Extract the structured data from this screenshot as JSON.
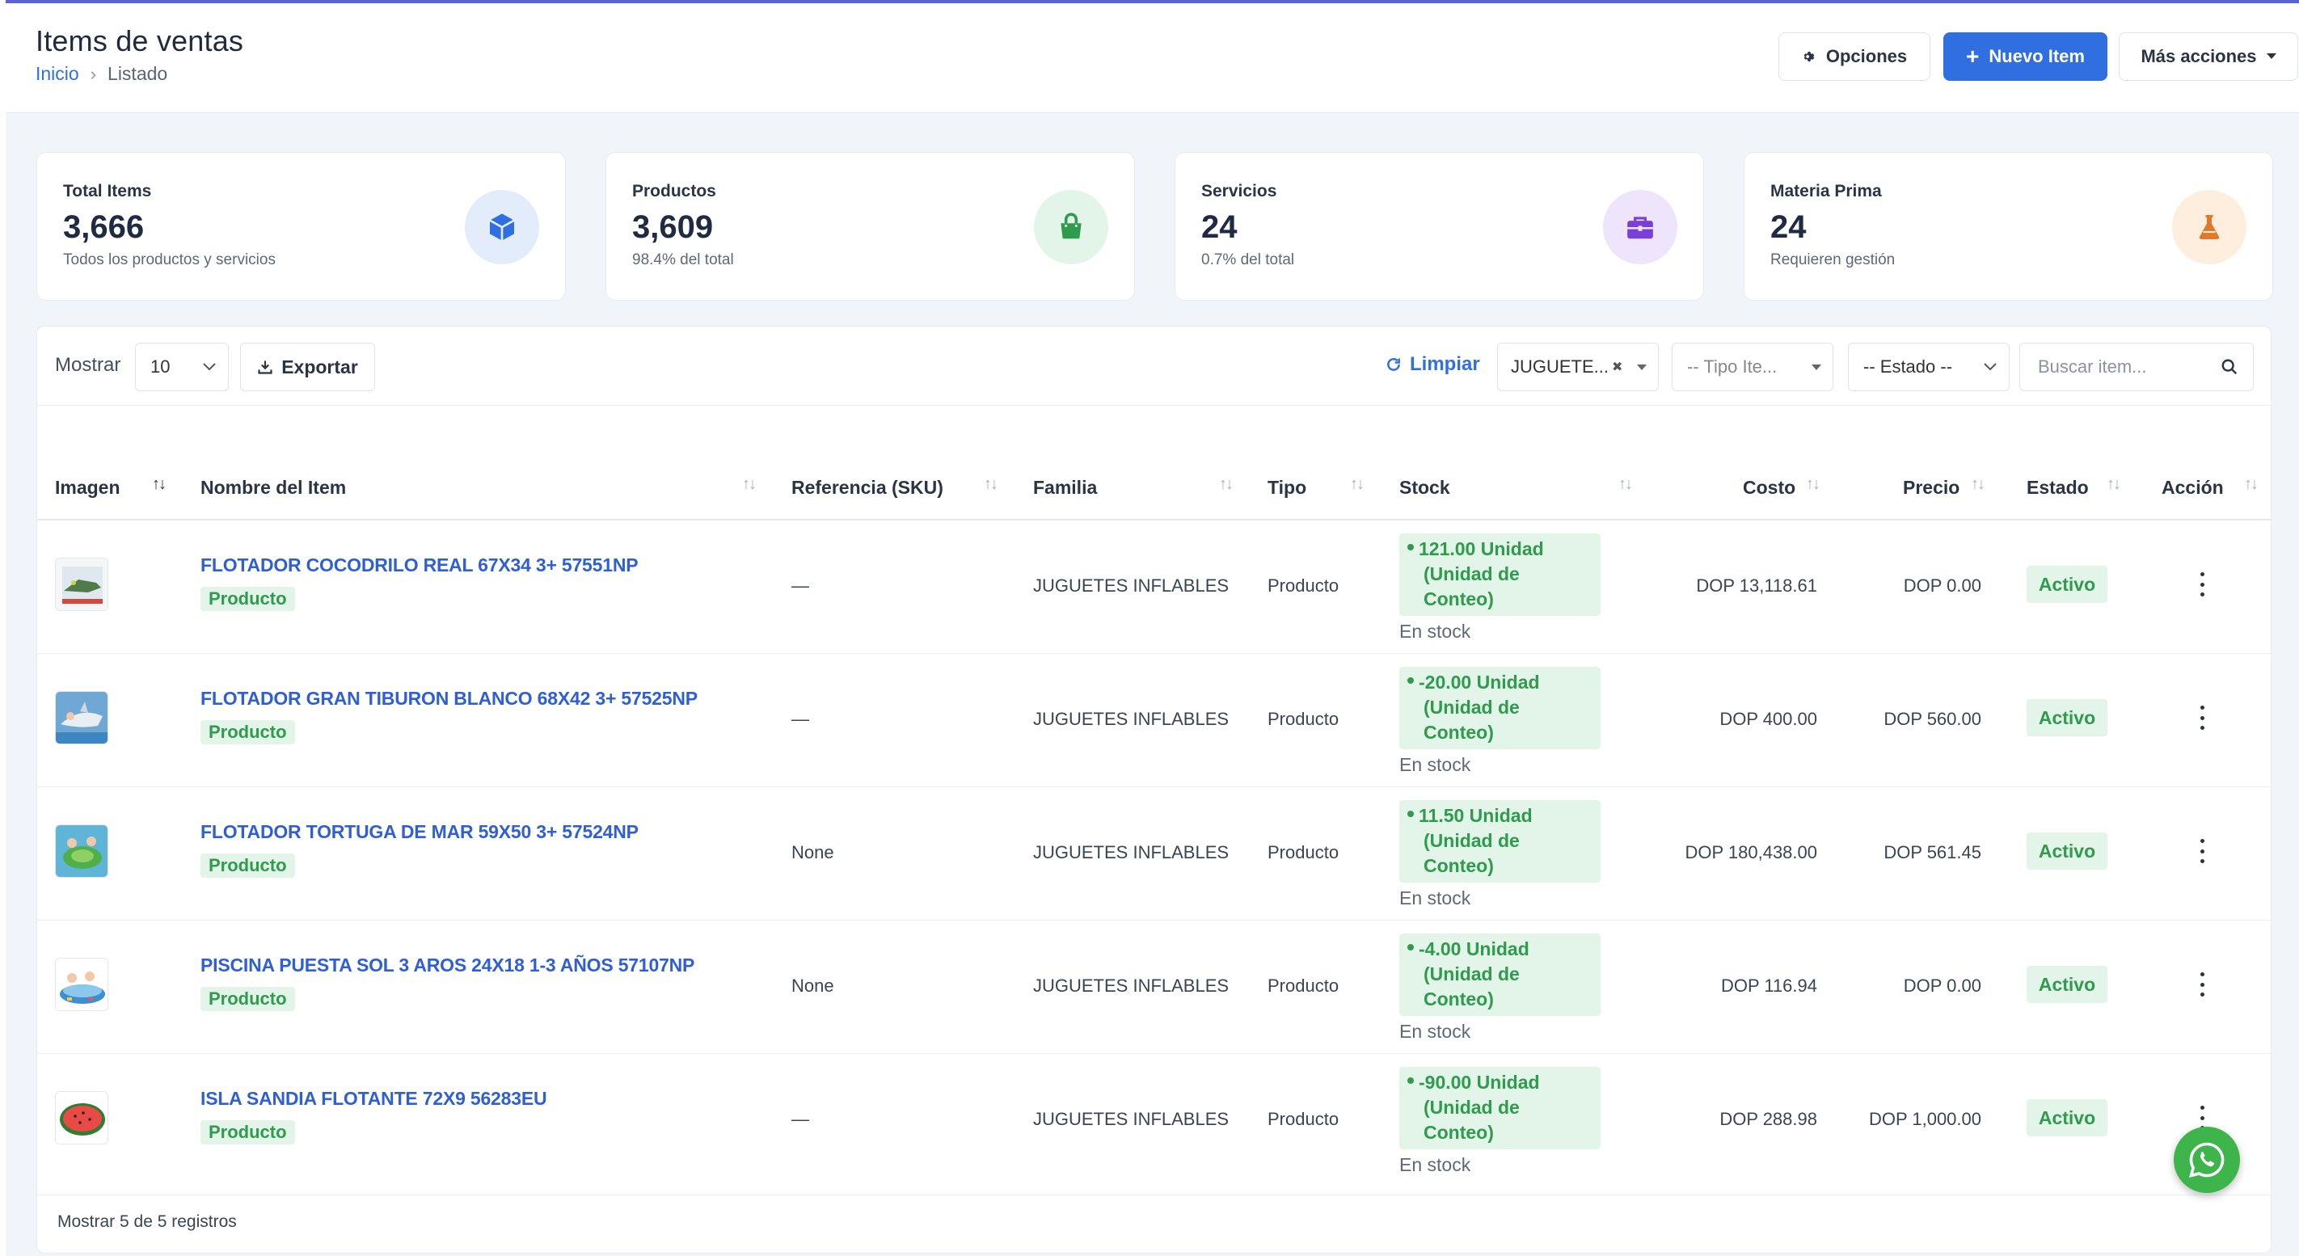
{
  "header": {
    "title": "Items de ventas",
    "breadcrumb": {
      "home": "Inicio",
      "current": "Listado"
    },
    "buttons": {
      "options": "Opciones",
      "new_item": "Nuevo Item",
      "more_actions": "Más acciones"
    }
  },
  "stats": [
    {
      "label": "Total Items",
      "value": "3,666",
      "sub": "Todos los productos y servicios",
      "icon": "cube-icon",
      "color": "#2f6fe0",
      "bg": "#e3ecfb"
    },
    {
      "label": "Productos",
      "value": "3,609",
      "sub": "98.4% del total",
      "icon": "shopping-bag-icon",
      "color": "#2e9b4d",
      "bg": "#e3f5e8"
    },
    {
      "label": "Servicios",
      "value": "24",
      "sub": "0.7% del total",
      "icon": "briefcase-icon",
      "color": "#7b3fd9",
      "bg": "#eee4fb"
    },
    {
      "label": "Materia Prima",
      "value": "24",
      "sub": "Requieren gestión",
      "icon": "flask-icon",
      "color": "#e07a2a",
      "bg": "#fdeedd"
    }
  ],
  "toolbar": {
    "show_label": "Mostrar",
    "page_size": "10",
    "export_label": "Exportar",
    "clear_label": "Limpiar",
    "family_filter": "JUGUETE...",
    "type_filter": "-- Tipo Ite...",
    "status_filter": "-- Estado --",
    "search_placeholder": "Buscar item..."
  },
  "table": {
    "columns": [
      "Imagen",
      "Nombre del Item",
      "Referencia (SKU)",
      "Familia",
      "Tipo",
      "Stock",
      "Costo",
      "Precio",
      "Estado",
      "Acción"
    ],
    "rows": [
      {
        "name": "FLOTADOR COCODRILO REAL 67X34 3+ 57551NP",
        "type_badge": "Producto",
        "sku": "—",
        "family": "JUGUETES INFLABLES",
        "type": "Producto",
        "stock_l1": "121.00 Unidad",
        "stock_l2": "(Unidad de",
        "stock_l3": "Conteo)",
        "stock_note": "En stock",
        "cost": "DOP 13,118.61",
        "price": "DOP 0.00",
        "status": "Activo"
      },
      {
        "name": "FLOTADOR GRAN TIBURON BLANCO 68X42 3+ 57525NP",
        "type_badge": "Producto",
        "sku": "—",
        "family": "JUGUETES INFLABLES",
        "type": "Producto",
        "stock_l1": "-20.00 Unidad",
        "stock_l2": "(Unidad de",
        "stock_l3": "Conteo)",
        "stock_note": "En stock",
        "cost": "DOP 400.00",
        "price": "DOP 560.00",
        "status": "Activo"
      },
      {
        "name": "FLOTADOR TORTUGA DE MAR 59X50 3+ 57524NP",
        "type_badge": "Producto",
        "sku": "None",
        "family": "JUGUETES INFLABLES",
        "type": "Producto",
        "stock_l1": "11.50 Unidad",
        "stock_l2": "(Unidad de",
        "stock_l3": "Conteo)",
        "stock_note": "En stock",
        "cost": "DOP 180,438.00",
        "price": "DOP 561.45",
        "status": "Activo"
      },
      {
        "name": "PISCINA PUESTA SOL 3 AROS 24X18 1-3 AÑOS 57107NP",
        "type_badge": "Producto",
        "sku": "None",
        "family": "JUGUETES INFLABLES",
        "type": "Producto",
        "stock_l1": "-4.00 Unidad",
        "stock_l2": "(Unidad de",
        "stock_l3": "Conteo)",
        "stock_note": "En stock",
        "cost": "DOP 116.94",
        "price": "DOP 0.00",
        "status": "Activo"
      },
      {
        "name": "ISLA SANDIA FLOTANTE 72X9 56283EU",
        "type_badge": "Producto",
        "sku": "—",
        "family": "JUGUETES INFLABLES",
        "type": "Producto",
        "stock_l1": "-90.00 Unidad",
        "stock_l2": "(Unidad de",
        "stock_l3": "Conteo)",
        "stock_note": "En stock",
        "cost": "DOP 288.98",
        "price": "DOP 1,000.00",
        "status": "Activo"
      }
    ]
  },
  "footer": {
    "records": "Mostrar 5 de 5 registros"
  }
}
